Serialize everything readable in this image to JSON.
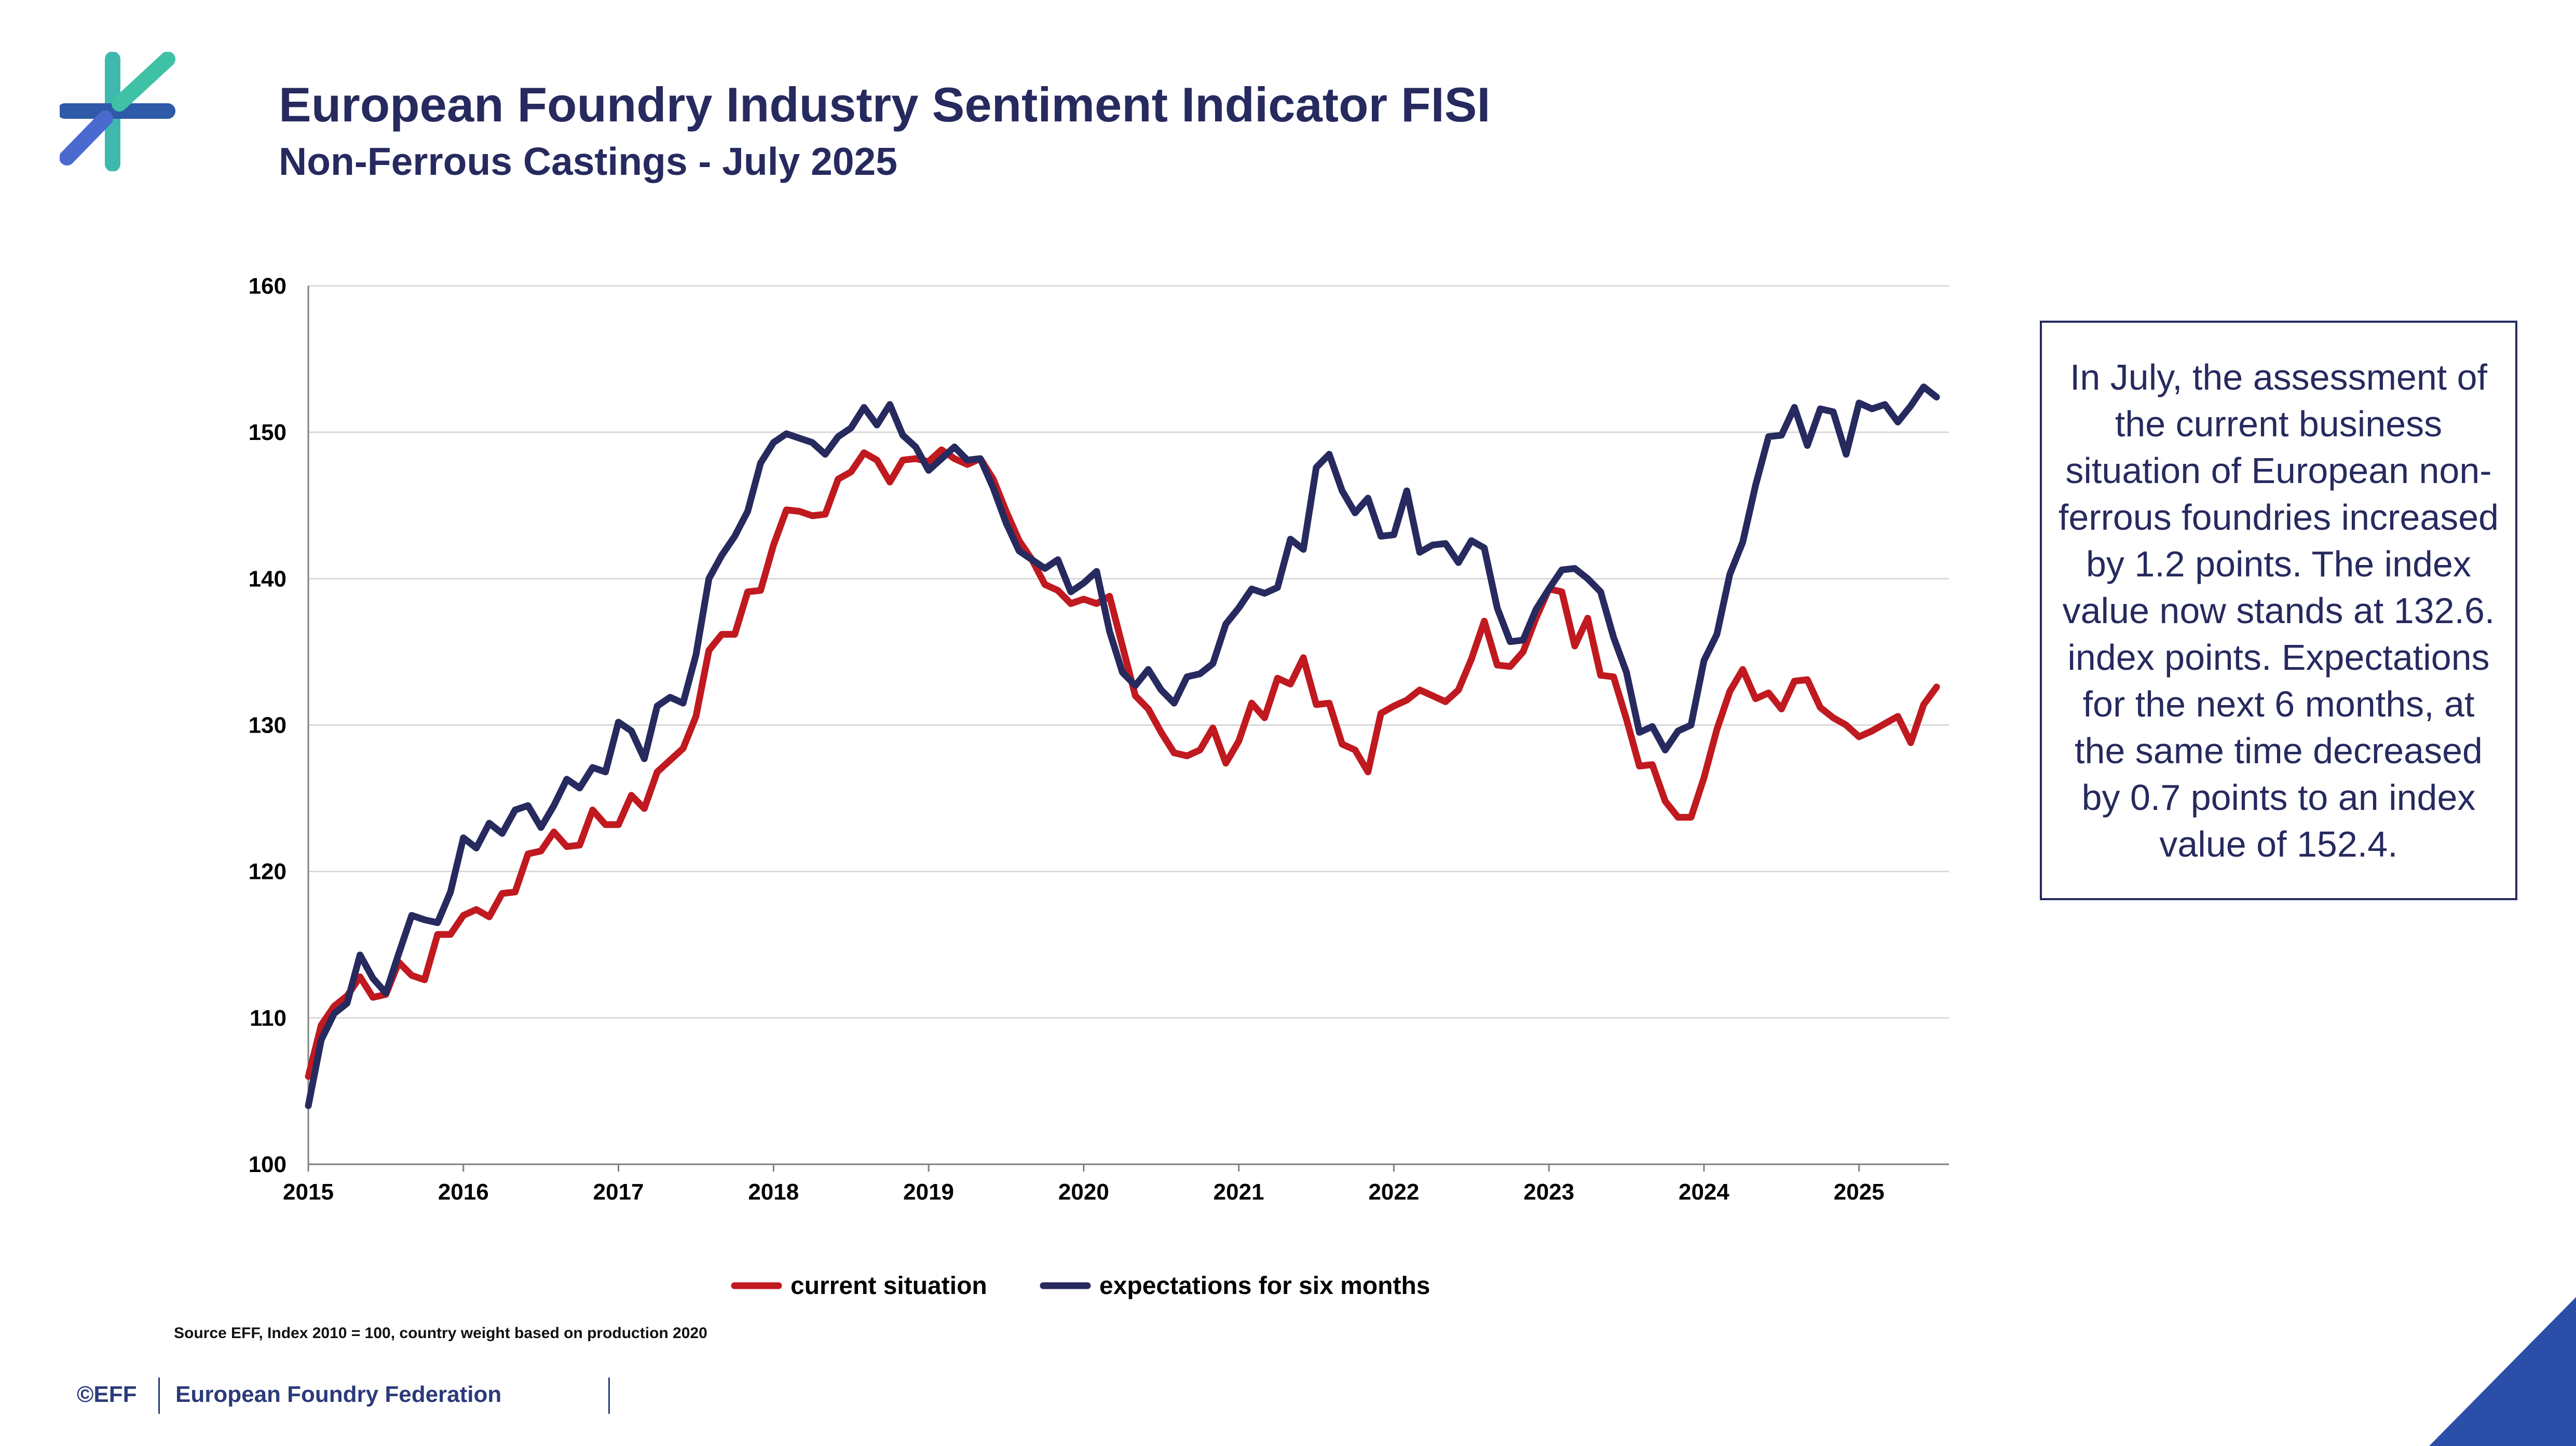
{
  "header": {
    "title": "European Foundry Industry Sentiment Indicator FISI",
    "subtitle": "Non-Ferrous Castings - July 2025"
  },
  "logo": {
    "icon": "eff-star-logo",
    "colors": [
      "#2e5aa8",
      "#3fc1a6",
      "#4a6ad0"
    ]
  },
  "note_box": {
    "text": "In July, the assessment of the current business situation of European non-ferrous foundries increased by 1.2 points. The index value now stands at 132.6. index points. Expectations for the next 6 months, at the same time decreased by 0.7 points to an index value of 152.4."
  },
  "source": "Source EFF, Index 2010 = 100, country weight based on production 2020",
  "footer": {
    "copyright": "©EFF",
    "organization": "European Foundry Federation"
  },
  "colors": {
    "current": "#c0191f",
    "expectations": "#262a5e",
    "title": "#262a5e",
    "accent_corner": "#2b4fa8"
  },
  "chart_data": {
    "type": "line",
    "title": "",
    "xlabel": "",
    "ylabel": "",
    "ylim": [
      100,
      160
    ],
    "yticks": [
      100,
      110,
      120,
      130,
      140,
      150,
      160
    ],
    "xlim": [
      2015,
      2025.58
    ],
    "xticks": [
      "2015",
      "2016",
      "2017",
      "2018",
      "2019",
      "2020",
      "2021",
      "2022",
      "2023",
      "2024",
      "2025"
    ],
    "grid": "horizontal",
    "legend": "bottom",
    "x_start": "2015-01",
    "frequency": "monthly",
    "series": [
      {
        "name": "current situation",
        "color": "#c0191f",
        "values": [
          106.0,
          109.5,
          110.8,
          111.5,
          112.8,
          111.4,
          111.6,
          113.8,
          112.9,
          112.6,
          115.7,
          115.7,
          117.0,
          117.4,
          116.9,
          118.5,
          118.6,
          121.2,
          121.4,
          122.7,
          121.7,
          121.8,
          124.2,
          123.2,
          123.2,
          125.2,
          124.3,
          126.8,
          127.6,
          128.4,
          130.6,
          135.1,
          136.2,
          136.2,
          139.1,
          139.2,
          142.3,
          144.7,
          144.6,
          144.3,
          144.4,
          146.8,
          147.3,
          148.6,
          148.1,
          146.6,
          148.1,
          148.2,
          148.0,
          148.8,
          148.2,
          147.8,
          148.2,
          146.8,
          144.6,
          142.6,
          141.3,
          139.6,
          139.2,
          138.3,
          138.6,
          138.3,
          138.8,
          135.4,
          132.0,
          131.1,
          129.5,
          128.1,
          127.9,
          128.3,
          129.8,
          127.4,
          128.9,
          131.5,
          130.5,
          133.2,
          132.8,
          134.6,
          131.4,
          131.5,
          128.7,
          128.3,
          126.8,
          130.8,
          131.3,
          131.7,
          132.4,
          132.0,
          131.6,
          132.4,
          134.5,
          137.1,
          134.1,
          134.0,
          135.0,
          137.3,
          139.3,
          139.1,
          135.4,
          137.3,
          133.4,
          133.3,
          130.4,
          127.2,
          127.3,
          124.8,
          123.7,
          123.7,
          126.4,
          129.7,
          132.3,
          133.8,
          131.8,
          132.2,
          131.1,
          133.0,
          133.1,
          131.2,
          130.5,
          130.0,
          129.2,
          129.6,
          130.1,
          130.6,
          128.8,
          131.4,
          132.6
        ]
      },
      {
        "name": "expectations for six months",
        "color": "#262a5e",
        "values": [
          104.0,
          108.5,
          110.3,
          111.0,
          114.3,
          112.7,
          111.7,
          114.4,
          117.0,
          116.7,
          116.5,
          118.6,
          122.3,
          121.6,
          123.3,
          122.6,
          124.2,
          124.5,
          123.0,
          124.5,
          126.3,
          125.7,
          127.1,
          126.8,
          130.2,
          129.6,
          127.7,
          131.3,
          131.9,
          131.5,
          134.8,
          140.0,
          141.6,
          142.9,
          144.6,
          147.9,
          149.3,
          149.9,
          149.6,
          149.3,
          148.5,
          149.7,
          150.3,
          151.7,
          150.5,
          151.9,
          149.8,
          149.0,
          147.4,
          148.2,
          149.0,
          148.1,
          148.2,
          146.2,
          143.8,
          141.9,
          141.3,
          140.7,
          141.3,
          139.1,
          139.7,
          140.5,
          136.4,
          133.6,
          132.7,
          133.8,
          132.4,
          131.5,
          133.3,
          133.5,
          134.2,
          136.9,
          138.0,
          139.3,
          139.0,
          139.4,
          142.7,
          142.0,
          147.6,
          148.5,
          146.0,
          144.5,
          145.5,
          142.9,
          143.0,
          146.0,
          141.8,
          142.3,
          142.4,
          141.1,
          142.6,
          142.1,
          138.0,
          135.7,
          135.8,
          137.9,
          139.3,
          140.6,
          140.7,
          140.0,
          139.1,
          136.0,
          133.6,
          129.5,
          129.9,
          128.3,
          129.6,
          130.0,
          134.4,
          136.2,
          140.3,
          142.5,
          146.4,
          149.7,
          149.8,
          151.7,
          149.1,
          151.6,
          151.4,
          148.5,
          152.0,
          151.6,
          151.9,
          150.7,
          151.8,
          153.1,
          152.4
        ]
      }
    ]
  }
}
